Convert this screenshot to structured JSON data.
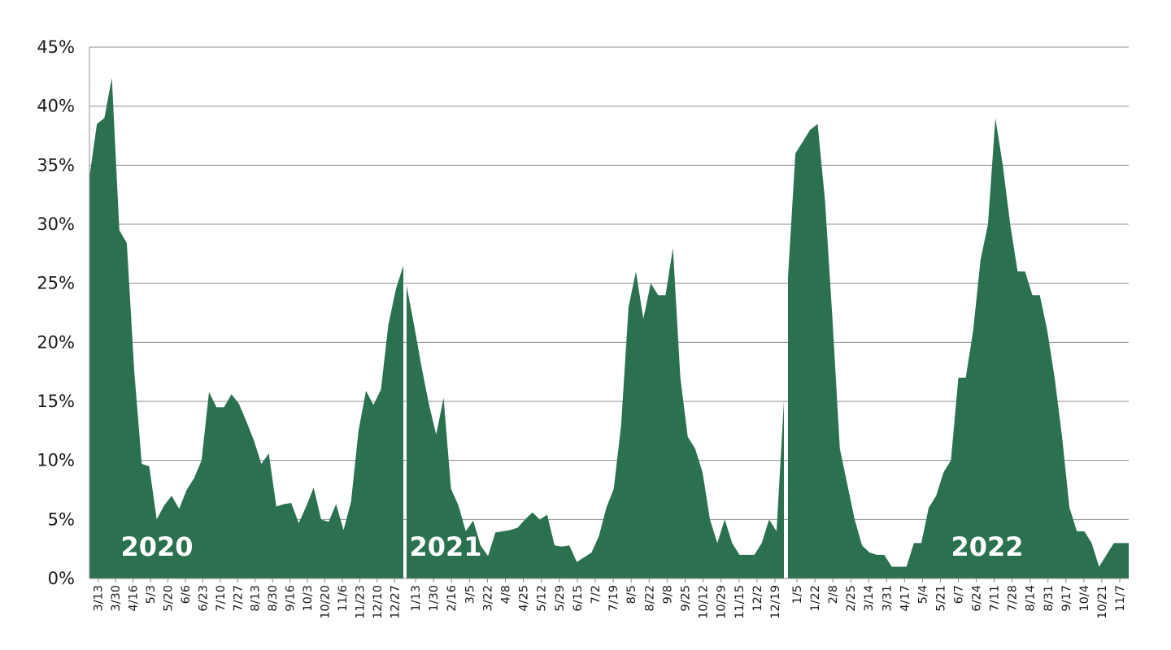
{
  "chart_data": {
    "type": "area",
    "title": "",
    "xlabel": "",
    "ylabel": "",
    "ylim": [
      0,
      45
    ],
    "y_ticks": [
      "0%",
      "5%",
      "10%",
      "15%",
      "20%",
      "25%",
      "30%",
      "35%",
      "40%",
      "45%"
    ],
    "grid": true,
    "color": "#2b7150",
    "series": [
      {
        "name": "2020",
        "tick_labels": [
          "3/13",
          "3/30",
          "4/16",
          "5/3",
          "5/20",
          "6/6",
          "6/23",
          "7/10",
          "7/27",
          "8/13",
          "8/30",
          "9/16",
          "10/3",
          "10/20",
          "11/6",
          "11/23",
          "12/10",
          "12/27"
        ],
        "values": [
          34,
          38.5,
          39,
          42.4,
          29.5,
          28.4,
          17.5,
          9.7,
          9.5,
          5,
          6.2,
          7,
          5.9,
          7.5,
          8.5,
          10,
          15.8,
          14.5,
          14.5,
          15.6,
          14.8,
          13.3,
          11.7,
          9.7,
          10.6,
          6.1,
          6.3,
          6.4,
          4.7,
          6.1,
          7.7,
          5,
          4.8,
          6.3,
          4.1,
          6.5,
          12.5,
          15.9,
          14.7,
          16,
          21.5,
          24.5,
          26.5
        ]
      },
      {
        "name": "2021",
        "tick_labels": [
          "1/13",
          "1/30",
          "2/16",
          "3/5",
          "3/22",
          "4/8",
          "4/25",
          "5/12",
          "5/29",
          "6/15",
          "7/2",
          "7/19",
          "8/5",
          "8/22",
          "9/8",
          "9/25",
          "10/12",
          "10/29",
          "11/15",
          "12/2",
          "12/19"
        ],
        "values": [
          24.8,
          21.5,
          18,
          14.8,
          12.2,
          15.3,
          7.6,
          6.2,
          4,
          4.9,
          2.8,
          1.9,
          3.9,
          4,
          4.1,
          4.3,
          5,
          5.6,
          5,
          5.4,
          2.8,
          2.7,
          2.8,
          1.4,
          1.8,
          2.2,
          3.6,
          6,
          7.6,
          13,
          23,
          26,
          22,
          25,
          24,
          24,
          28,
          17,
          12,
          11,
          9,
          5,
          3,
          5,
          3,
          2,
          2,
          2,
          3,
          5,
          4,
          15
        ]
      },
      {
        "name": "2022",
        "tick_labels": [
          "1/5",
          "1/22",
          "2/8",
          "2/25",
          "3/14",
          "3/31",
          "4/17",
          "5/4",
          "5/21",
          "6/7",
          "6/24",
          "7/11",
          "7/28",
          "8/14",
          "8/31",
          "9/17",
          "10/4",
          "10/21",
          "11/7"
        ],
        "values": [
          25.5,
          36,
          37,
          38,
          38.5,
          32,
          22,
          11,
          8,
          5,
          2.8,
          2.2,
          2,
          2,
          1,
          1,
          1,
          3,
          3,
          6,
          7,
          9,
          10,
          17,
          17,
          21,
          27,
          30,
          39,
          35,
          30,
          26,
          26,
          24,
          24,
          21,
          17,
          12,
          6,
          4,
          4,
          3,
          1,
          2,
          3,
          3,
          3
        ]
      }
    ]
  }
}
